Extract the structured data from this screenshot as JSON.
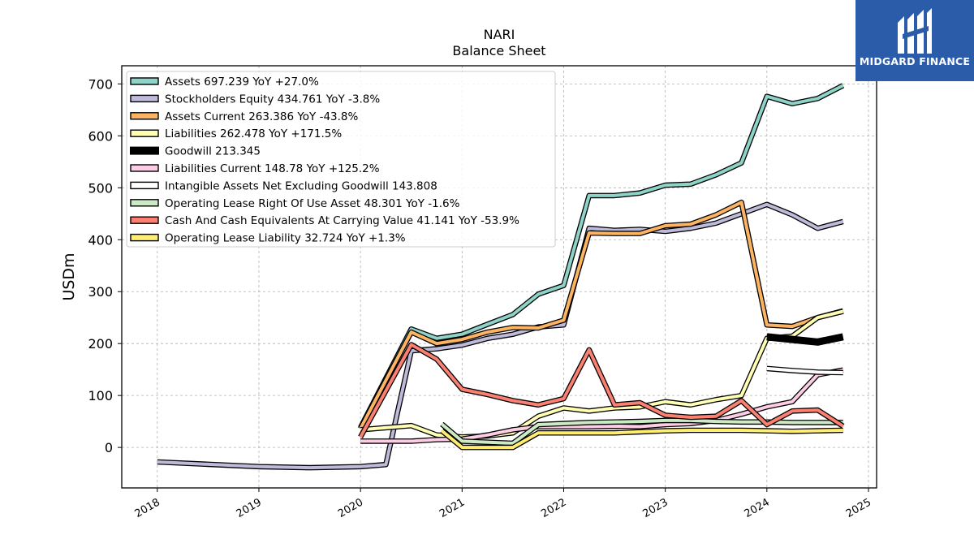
{
  "brand": {
    "name": "MIDGARD FINANCE",
    "bg_color": "#2a5caa"
  },
  "chart_data": {
    "type": "line",
    "title": "NARI",
    "subtitle": "Balance  Sheet",
    "ylabel": "USDm",
    "xlabel": "",
    "xlim": [
      2017.65,
      2025.08
    ],
    "ylim": [
      -78,
      735
    ],
    "yticks": [
      0,
      100,
      200,
      300,
      400,
      500,
      600,
      700
    ],
    "xticks": [
      "2018",
      "2019",
      "2020",
      "2021",
      "2022",
      "2023",
      "2024",
      "2025"
    ],
    "grid": true,
    "legend_position": "top-left",
    "series": [
      {
        "name": "Assets  697.239 YoY +27.0%",
        "color": "#8dd3c7",
        "width": 4,
        "points": [
          [
            2020.0,
            38
          ],
          [
            2020.5,
            228
          ],
          [
            2020.75,
            210
          ],
          [
            2021.0,
            218
          ],
          [
            2021.25,
            237
          ],
          [
            2021.5,
            256
          ],
          [
            2021.75,
            295
          ],
          [
            2022.0,
            312
          ],
          [
            2022.25,
            485
          ],
          [
            2022.5,
            485
          ],
          [
            2022.75,
            490
          ],
          [
            2023.0,
            505
          ],
          [
            2023.25,
            507
          ],
          [
            2023.5,
            525
          ],
          [
            2023.75,
            548
          ],
          [
            2024.0,
            676
          ],
          [
            2024.25,
            662
          ],
          [
            2024.5,
            672
          ],
          [
            2024.75,
            697
          ]
        ]
      },
      {
        "name": "Stockholders Equity  434.761 YoY -3.8%",
        "color": "#bebada",
        "width": 4,
        "points": [
          [
            2018.0,
            -28
          ],
          [
            2019.0,
            -37
          ],
          [
            2019.5,
            -39
          ],
          [
            2020.0,
            -37
          ],
          [
            2020.25,
            -33
          ],
          [
            2020.5,
            186
          ],
          [
            2020.75,
            190
          ],
          [
            2021.0,
            197
          ],
          [
            2021.25,
            210
          ],
          [
            2021.5,
            218
          ],
          [
            2021.75,
            232
          ],
          [
            2022.0,
            236
          ],
          [
            2022.25,
            422
          ],
          [
            2022.5,
            418
          ],
          [
            2022.75,
            420
          ],
          [
            2023.0,
            416
          ],
          [
            2023.25,
            422
          ],
          [
            2023.5,
            432
          ],
          [
            2023.75,
            450
          ],
          [
            2024.0,
            468
          ],
          [
            2024.25,
            448
          ],
          [
            2024.5,
            422
          ],
          [
            2024.75,
            435
          ]
        ]
      },
      {
        "name": "Assets Current  263.386 YoY -43.8%",
        "color": "#fdb462",
        "width": 4,
        "points": [
          [
            2020.0,
            36
          ],
          [
            2020.5,
            222
          ],
          [
            2020.75,
            200
          ],
          [
            2021.0,
            208
          ],
          [
            2021.25,
            222
          ],
          [
            2021.5,
            231
          ],
          [
            2021.75,
            230
          ],
          [
            2022.0,
            245
          ],
          [
            2022.25,
            413
          ],
          [
            2022.5,
            412
          ],
          [
            2022.75,
            412
          ],
          [
            2023.0,
            427
          ],
          [
            2023.25,
            430
          ],
          [
            2023.5,
            448
          ],
          [
            2023.75,
            472
          ],
          [
            2024.0,
            236
          ],
          [
            2024.25,
            233
          ],
          [
            2024.5,
            250
          ],
          [
            2024.75,
            263
          ]
        ]
      },
      {
        "name": "Liabilities  262.478 YoY +171.5%",
        "color": "#ffffb3",
        "width": 4,
        "points": [
          [
            2020.0,
            34
          ],
          [
            2020.5,
            42
          ],
          [
            2020.75,
            24
          ],
          [
            2021.0,
            20
          ],
          [
            2021.25,
            22
          ],
          [
            2021.5,
            28
          ],
          [
            2021.75,
            60
          ],
          [
            2022.0,
            76
          ],
          [
            2022.25,
            70
          ],
          [
            2022.5,
            76
          ],
          [
            2022.75,
            78
          ],
          [
            2023.0,
            88
          ],
          [
            2023.25,
            82
          ],
          [
            2023.5,
            92
          ],
          [
            2023.75,
            100
          ],
          [
            2024.0,
            210
          ],
          [
            2024.25,
            214
          ],
          [
            2024.5,
            250
          ],
          [
            2024.75,
            262
          ]
        ]
      },
      {
        "name": "Goodwill  213.345",
        "color": "#000000",
        "width": 9,
        "points": [
          [
            2024.0,
            213
          ],
          [
            2024.25,
            208
          ],
          [
            2024.5,
            203
          ],
          [
            2024.75,
            213
          ]
        ]
      },
      {
        "name": "Liabilities Current  148.78 YoY +125.2%",
        "color": "#fccde5",
        "width": 4,
        "points": [
          [
            2020.0,
            12
          ],
          [
            2020.5,
            12
          ],
          [
            2020.75,
            15
          ],
          [
            2021.0,
            16
          ],
          [
            2021.25,
            24
          ],
          [
            2021.5,
            34
          ],
          [
            2021.75,
            40
          ],
          [
            2022.0,
            40
          ],
          [
            2022.25,
            40
          ],
          [
            2022.5,
            41
          ],
          [
            2022.75,
            40
          ],
          [
            2023.0,
            44
          ],
          [
            2023.25,
            46
          ],
          [
            2023.5,
            52
          ],
          [
            2023.75,
            64
          ],
          [
            2024.0,
            78
          ],
          [
            2024.25,
            88
          ],
          [
            2024.5,
            140
          ],
          [
            2024.75,
            149
          ]
        ]
      },
      {
        "name": "Intangible Assets Net Excluding Goodwill  143.808",
        "color": "#ffffff",
        "width": 4,
        "points": [
          [
            2024.0,
            152
          ],
          [
            2024.25,
            148
          ],
          [
            2024.5,
            145
          ],
          [
            2024.75,
            144
          ]
        ]
      },
      {
        "name": "Operating Lease Right Of Use Asset  48.301 YoY -1.6%",
        "color": "#ccebc5",
        "width": 4,
        "points": [
          [
            2020.8,
            45
          ],
          [
            2021.0,
            12
          ],
          [
            2021.5,
            8
          ],
          [
            2021.75,
            44
          ],
          [
            2022.0,
            46
          ],
          [
            2022.25,
            48
          ],
          [
            2022.5,
            49
          ],
          [
            2022.75,
            50
          ],
          [
            2023.0,
            52
          ],
          [
            2023.25,
            52
          ],
          [
            2023.5,
            50
          ],
          [
            2023.75,
            49
          ],
          [
            2024.0,
            49
          ],
          [
            2024.25,
            48
          ],
          [
            2024.5,
            48
          ],
          [
            2024.75,
            48
          ]
        ]
      },
      {
        "name": "Cash And Cash Equivalents At Carrying Value  41.141 YoY -53.9%",
        "color": "#fb8072",
        "width": 4,
        "points": [
          [
            2020.0,
            20
          ],
          [
            2020.5,
            198
          ],
          [
            2020.75,
            170
          ],
          [
            2021.0,
            112
          ],
          [
            2021.25,
            102
          ],
          [
            2021.5,
            90
          ],
          [
            2021.75,
            82
          ],
          [
            2022.0,
            94
          ],
          [
            2022.25,
            188
          ],
          [
            2022.5,
            82
          ],
          [
            2022.75,
            86
          ],
          [
            2023.0,
            62
          ],
          [
            2023.25,
            58
          ],
          [
            2023.5,
            60
          ],
          [
            2023.75,
            90
          ],
          [
            2024.0,
            44
          ],
          [
            2024.25,
            70
          ],
          [
            2024.5,
            72
          ],
          [
            2024.75,
            41
          ]
        ]
      },
      {
        "name": "Operating Lease Liability  32.724 YoY +1.3%",
        "color": "#ffed6f",
        "width": 4,
        "points": [
          [
            2020.8,
            32
          ],
          [
            2021.0,
            0
          ],
          [
            2021.5,
            0
          ],
          [
            2021.75,
            28
          ],
          [
            2022.0,
            28
          ],
          [
            2022.25,
            28
          ],
          [
            2022.5,
            28
          ],
          [
            2022.75,
            30
          ],
          [
            2023.0,
            32
          ],
          [
            2023.25,
            33
          ],
          [
            2023.5,
            33
          ],
          [
            2023.75,
            33
          ],
          [
            2024.0,
            32
          ],
          [
            2024.25,
            31
          ],
          [
            2024.5,
            32
          ],
          [
            2024.75,
            33
          ]
        ]
      }
    ]
  }
}
